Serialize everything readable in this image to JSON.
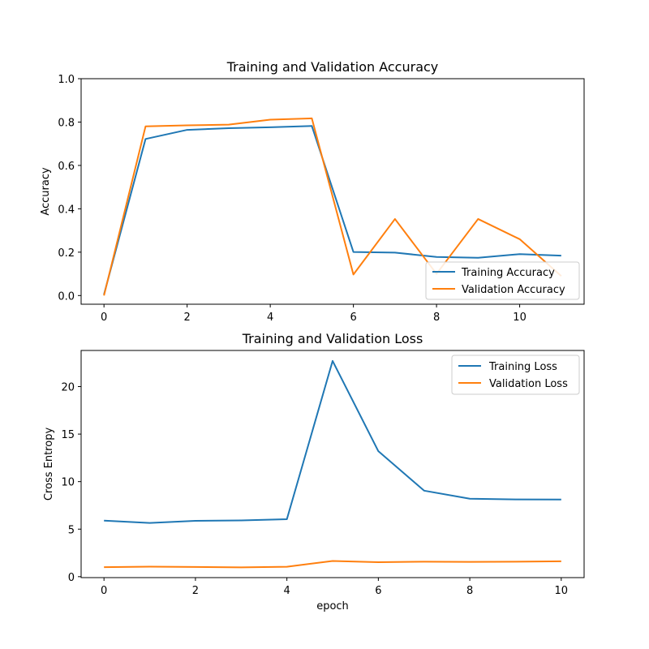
{
  "chart_data": [
    {
      "type": "line",
      "title": "Training and Validation Accuracy",
      "xlabel": "",
      "ylabel": "Accuracy",
      "xlim": [
        -0.55,
        11.55
      ],
      "ylim": [
        -0.04,
        1.0
      ],
      "xticks": [
        0,
        2,
        4,
        6,
        8,
        10
      ],
      "yticks": [
        0.0,
        0.2,
        0.4,
        0.6,
        0.8,
        1.0
      ],
      "ytick_format": "fixed1",
      "grid": false,
      "legend_position": "lower right",
      "x": [
        0,
        1,
        2,
        3,
        4,
        5,
        6,
        7,
        8,
        9,
        10,
        11
      ],
      "series": [
        {
          "name": "Training Accuracy",
          "color": "#1f77b4",
          "values": [
            0.005,
            0.722,
            0.764,
            0.772,
            0.776,
            0.782,
            0.201,
            0.198,
            0.178,
            0.174,
            0.191,
            0.184
          ]
        },
        {
          "name": "Validation Accuracy",
          "color": "#ff7f0e",
          "values": [
            0.0,
            0.78,
            0.785,
            0.788,
            0.811,
            0.817,
            0.097,
            0.353,
            0.1,
            0.353,
            0.26,
            0.09
          ]
        }
      ]
    },
    {
      "type": "line",
      "title": "Training and Validation Loss",
      "xlabel": "epoch",
      "ylabel": "Cross Entropy",
      "xlim": [
        -0.5,
        10.5
      ],
      "ylim": [
        -0.1,
        23.8
      ],
      "xticks": [
        0,
        2,
        4,
        6,
        8,
        10
      ],
      "yticks": [
        0,
        5,
        10,
        15,
        20
      ],
      "ytick_format": "int",
      "grid": false,
      "legend_position": "upper right",
      "x": [
        0,
        1,
        2,
        3,
        4,
        5,
        6,
        7,
        8,
        9,
        10
      ],
      "series": [
        {
          "name": "Training Loss",
          "color": "#1f77b4",
          "values": [
            5.9,
            5.65,
            5.87,
            5.92,
            6.05,
            22.7,
            13.2,
            9.05,
            8.2,
            8.13,
            8.12
          ]
        },
        {
          "name": "Validation Loss",
          "color": "#ff7f0e",
          "values": [
            1.0,
            1.05,
            1.02,
            0.98,
            1.04,
            1.65,
            1.52,
            1.58,
            1.55,
            1.58,
            1.62
          ]
        }
      ]
    }
  ]
}
